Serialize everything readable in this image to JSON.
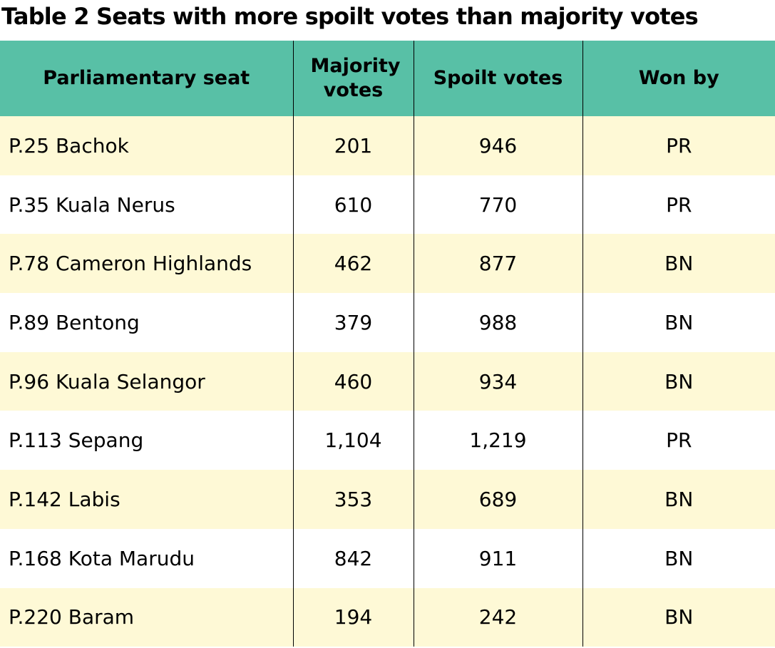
{
  "chart_data": {
    "type": "table",
    "title": "Table 2 Seats with more spoilt votes than majority votes",
    "colors": {
      "header": "#58c0a6",
      "stripe": "#fef9d6"
    },
    "columns": [
      "Parliamentary seat",
      "Majority votes",
      "Spoilt votes",
      "Won by"
    ],
    "rows": [
      {
        "seat": "P.25 Bachok",
        "majority": "201",
        "spoilt": "946",
        "won_by": "PR"
      },
      {
        "seat": "P.35 Kuala Nerus",
        "majority": "610",
        "spoilt": "770",
        "won_by": "PR"
      },
      {
        "seat": "P.78 Cameron Highlands",
        "majority": "462",
        "spoilt": "877",
        "won_by": "BN"
      },
      {
        "seat": "P.89 Bentong",
        "majority": "379",
        "spoilt": "988",
        "won_by": "BN"
      },
      {
        "seat": "P.96 Kuala Selangor",
        "majority": "460",
        "spoilt": "934",
        "won_by": "BN"
      },
      {
        "seat": "P.113 Sepang",
        "majority": "1,104",
        "spoilt": "1,219",
        "won_by": "PR"
      },
      {
        "seat": "P.142 Labis",
        "majority": "353",
        "spoilt": "689",
        "won_by": "BN"
      },
      {
        "seat": "P.168 Kota Marudu",
        "majority": "842",
        "spoilt": "911",
        "won_by": "BN"
      },
      {
        "seat": "P.220 Baram",
        "majority": "194",
        "spoilt": "242",
        "won_by": "BN"
      }
    ]
  }
}
